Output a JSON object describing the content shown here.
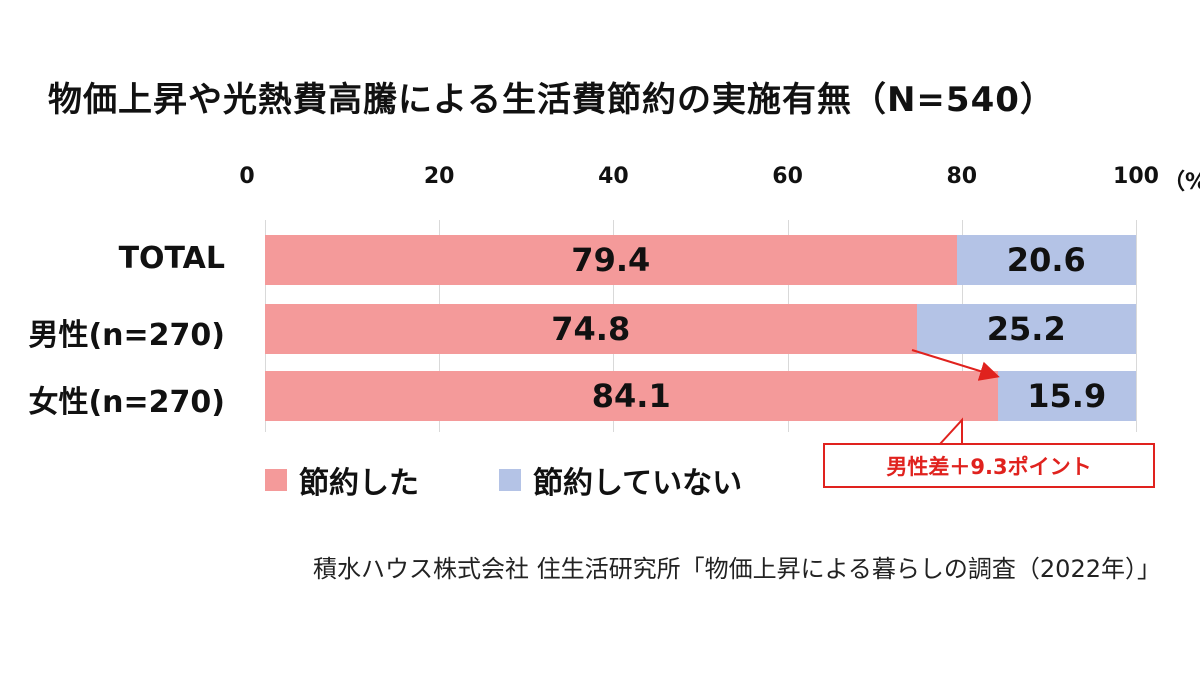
{
  "chart_data": {
    "type": "bar",
    "orientation": "horizontal",
    "stacked": true,
    "title": "物価上昇や光熱費高騰による生活費節約の実施有無（N=540）",
    "categories": [
      "TOTAL",
      "男性(n=270)",
      "女性(n=270)"
    ],
    "series": [
      {
        "name": "節約した",
        "values": [
          79.4,
          74.8,
          84.1
        ],
        "color": "#f49a9a"
      },
      {
        "name": "節約していない",
        "values": [
          20.6,
          25.2,
          15.9
        ],
        "color": "#b4c3e6"
      }
    ],
    "x_ticks": [
      "0",
      "20",
      "40",
      "60",
      "80",
      "100"
    ],
    "x_unit": "（%）",
    "xlim": [
      0,
      100
    ],
    "grid": true,
    "legend_position": "bottom-left",
    "annotation": "男性差＋9.3ポイント",
    "annotation_color": "#e0221e"
  },
  "source": "積水ハウス株式会社 住生活研究所「物価上昇による暮らしの調査（2022年）」"
}
